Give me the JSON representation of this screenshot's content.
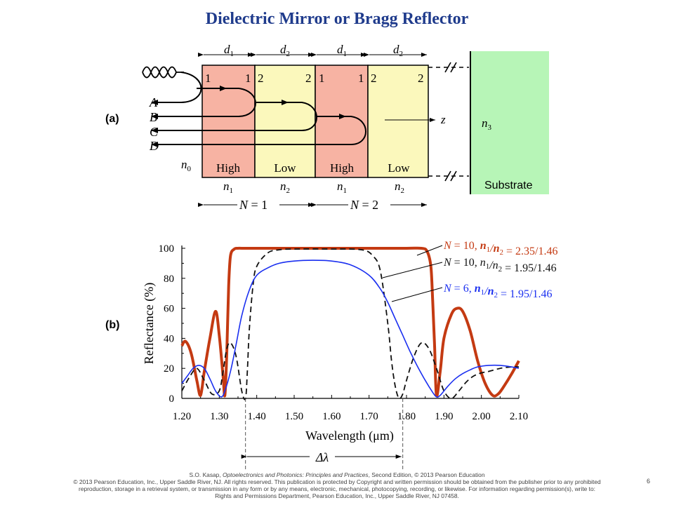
{
  "title": "Dielectric Mirror or Bragg Reflector",
  "panel_a": {
    "label": "(a)",
    "thickness_labels": [
      {
        "sym": "d",
        "sub": "1"
      },
      {
        "sym": "d",
        "sub": "2"
      },
      {
        "sym": "d",
        "sub": "1"
      },
      {
        "sym": "d",
        "sub": "2"
      }
    ],
    "interface_numbers": [
      "1",
      "1",
      "2",
      "2",
      "1",
      "1",
      "2",
      "2"
    ],
    "layers": [
      {
        "type": "High",
        "n_sym": "n",
        "n_sub": "1",
        "color": "#f7b3a3"
      },
      {
        "type": "Low",
        "n_sym": "n",
        "n_sub": "2",
        "color": "#fbf8bc"
      },
      {
        "type": "High",
        "n_sym": "n",
        "n_sub": "1",
        "color": "#f7b3a3"
      },
      {
        "type": "Low",
        "n_sym": "n",
        "n_sub": "2",
        "color": "#fbf8bc"
      }
    ],
    "beams": [
      "A",
      "B",
      "C",
      "D"
    ],
    "n0": {
      "sym": "n",
      "sub": "0"
    },
    "n3": {
      "sym": "n",
      "sub": "3"
    },
    "z_label": "z",
    "substrate_label": "Substrate",
    "substrate_color": "#b7f5b7",
    "periods": [
      {
        "prefix": "N",
        "value": " = 1"
      },
      {
        "prefix": "N",
        "value": " = 2"
      }
    ]
  },
  "panel_b": {
    "label": "(b)",
    "chart_data": {
      "type": "line",
      "title": "",
      "xlabel_pre": "Wavelength (",
      "xlabel_mu": "μ",
      "xlabel_post": "m)",
      "ylabel": "Reflectance (%)",
      "xlim": [
        1.2,
        2.1
      ],
      "ylim": [
        0,
        100
      ],
      "xticks": [
        "1.20",
        "1.30",
        "1.40",
        "1.50",
        "1.60",
        "1.70",
        "1.80",
        "1.90",
        "2.00",
        "2.10"
      ],
      "yticks": [
        "0",
        "20",
        "40",
        "60",
        "80",
        "100"
      ],
      "bandwidth_label": "Δλ",
      "bandwidth_range": [
        1.37,
        1.79
      ],
      "series": [
        {
          "name_parts": [
            "N",
            " = 10, ",
            "n",
            "1",
            "/",
            "n",
            "2",
            " = 2.35/1.46"
          ],
          "color": "#c43a12",
          "style": "solid",
          "x": [
            1.2,
            1.21,
            1.225,
            1.24,
            1.25,
            1.26,
            1.275,
            1.29,
            1.3,
            1.31,
            1.315,
            1.32,
            1.325,
            1.33,
            1.34,
            1.35,
            1.36,
            1.4,
            1.5,
            1.6,
            1.7,
            1.8,
            1.84,
            1.855,
            1.865,
            1.87,
            1.875,
            1.88,
            1.89,
            1.9,
            1.92,
            1.935,
            1.95,
            1.97,
            1.99,
            2.01,
            2.03,
            2.045,
            2.06,
            2.08,
            2.1
          ],
          "y": [
            35,
            38,
            30,
            12,
            2,
            18,
            40,
            58,
            42,
            15,
            2,
            30,
            75,
            95,
            99.5,
            100,
            100,
            100,
            100,
            100,
            100,
            100,
            100,
            98,
            88,
            65,
            35,
            2,
            18,
            40,
            56,
            60,
            58,
            45,
            25,
            10,
            2,
            3,
            8,
            16,
            25
          ]
        },
        {
          "name_parts": [
            "N",
            " = 10, ",
            "n",
            "1",
            "/",
            "n",
            "2",
            " = 1.95/1.46"
          ],
          "color": "#111111",
          "style": "dashed",
          "x": [
            1.2,
            1.22,
            1.24,
            1.26,
            1.28,
            1.3,
            1.31,
            1.32,
            1.33,
            1.345,
            1.36,
            1.37,
            1.375,
            1.38,
            1.39,
            1.4,
            1.43,
            1.46,
            1.5,
            1.6,
            1.68,
            1.71,
            1.73,
            1.75,
            1.76,
            1.77,
            1.78,
            1.79,
            1.8,
            1.82,
            1.84,
            1.86,
            1.88,
            1.9,
            1.92,
            1.94,
            1.96,
            1.98,
            2.0,
            2.02,
            2.05,
            2.08,
            2.1
          ],
          "y": [
            5,
            14,
            20,
            12,
            3,
            5,
            18,
            33,
            37,
            28,
            5,
            0,
            18,
            45,
            75,
            88,
            97,
            99,
            99.5,
            99.5,
            99,
            95,
            85,
            50,
            25,
            8,
            0,
            3,
            12,
            28,
            37,
            33,
            20,
            5,
            0,
            5,
            11,
            15,
            17,
            18,
            20,
            21,
            21
          ]
        },
        {
          "name_parts": [
            "N",
            " = 6, ",
            "n",
            "1",
            "/",
            "n",
            "2",
            " = 1.95/1.46"
          ],
          "color": "#1a2ff0",
          "style": "solid",
          "x": [
            1.2,
            1.215,
            1.23,
            1.245,
            1.26,
            1.275,
            1.29,
            1.305,
            1.315,
            1.33,
            1.345,
            1.36,
            1.38,
            1.4,
            1.43,
            1.46,
            1.5,
            1.55,
            1.6,
            1.65,
            1.7,
            1.73,
            1.75,
            1.77,
            1.79,
            1.81,
            1.83,
            1.85,
            1.87,
            1.88,
            1.89,
            1.91,
            1.93,
            1.95,
            1.97,
            1.99,
            2.02,
            2.05,
            2.08,
            2.1
          ],
          "y": [
            10,
            15,
            20,
            22,
            20,
            13,
            5,
            1,
            5,
            18,
            36,
            55,
            72,
            82,
            87,
            90,
            91.5,
            92,
            91.5,
            89,
            82,
            73,
            64,
            53,
            42,
            31,
            21,
            12,
            4,
            1,
            2,
            8,
            13,
            16.5,
            19,
            21,
            22,
            22,
            21,
            20
          ]
        }
      ]
    }
  },
  "footer": {
    "line1_pre": "S.O. Kasap, ",
    "line1_book": "Optoelectronics and Photonics: Principles and Practices",
    "line1_post": ", Second Edition, © 2013 Pearson Education",
    "line2": "© 2013 Pearson Education, Inc., Upper Saddle River, NJ. All rights reserved. This publication is protected by Copyright and written permission should be obtained from the publisher prior to any prohibited",
    "line3": "reproduction, storage in a retrieval system, or transmission in any form or by any means, electronic, mechanical, photocopying, recording, or likewise. For information regarding permission(s), write to:",
    "line4": "Rights and Permissions Department, Pearson Education, Inc., Upper Saddle River, NJ 07458.",
    "slide_number": "6"
  }
}
